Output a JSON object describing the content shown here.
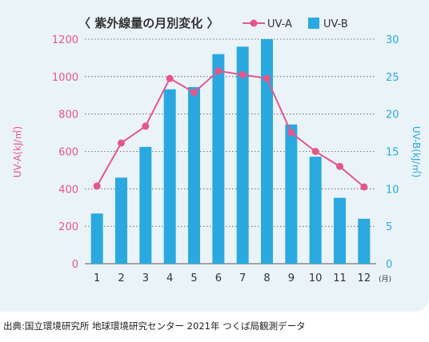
{
  "source_note": "出典:国立環境研究所 地球環境研究センター 2021年 つくば局観測データ",
  "colors": {
    "uva": "#e3578a",
    "uvb": "#29a9df",
    "axis_text": "#333333",
    "grid": "#555555"
  },
  "chart_data": {
    "type": "bar+line",
    "title": "〈 紫外線量の月別変化 〉",
    "categories": [
      "1",
      "2",
      "3",
      "4",
      "5",
      "6",
      "7",
      "8",
      "9",
      "10",
      "11",
      "12"
    ],
    "x_unit": "(月)",
    "left_axis": {
      "label": "UV-A(kJ/㎡)",
      "range": [
        0,
        1200
      ],
      "ticks": [
        "0",
        "200",
        "400",
        "600",
        "800",
        "1000",
        "1200"
      ]
    },
    "right_axis": {
      "label": "UV-B(kJ/㎡)",
      "range": [
        0,
        30
      ],
      "ticks": [
        "0",
        "5",
        "10",
        "15",
        "20",
        "25",
        "30"
      ]
    },
    "series": [
      {
        "name": "UV-A",
        "type": "line",
        "axis": "left",
        "values": [
          415,
          645,
          735,
          990,
          915,
          1030,
          1010,
          990,
          700,
          600,
          520,
          410
        ]
      },
      {
        "name": "UV-B",
        "type": "bar",
        "axis": "right",
        "values": [
          6.7,
          11.5,
          15.6,
          23.3,
          23.6,
          28.0,
          29.0,
          30.0,
          18.6,
          14.3,
          8.8,
          6.0
        ]
      }
    ],
    "legend": {
      "position": "top-right",
      "entries": [
        "UV-A",
        "UV-B"
      ]
    },
    "grid": "horizontal dotted"
  }
}
